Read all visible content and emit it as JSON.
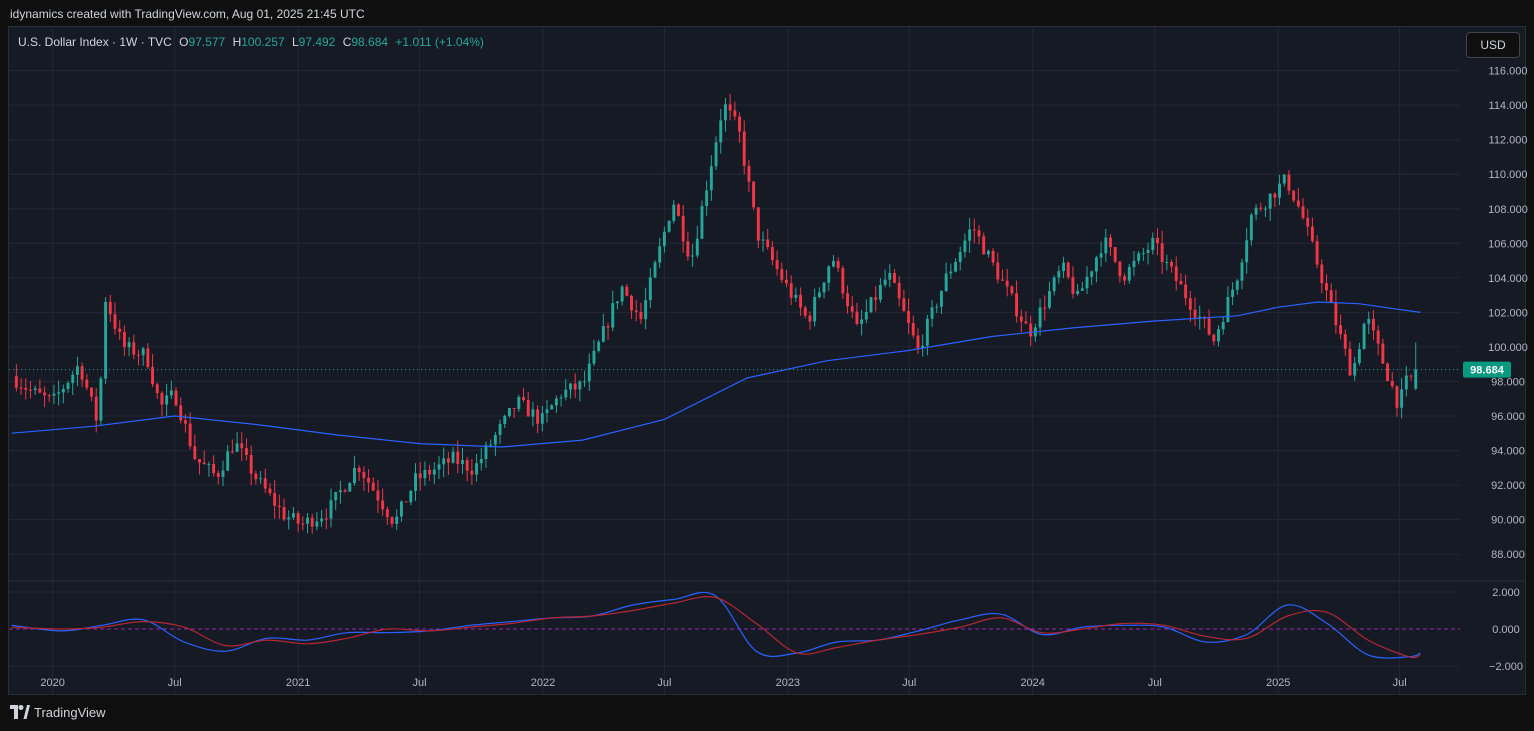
{
  "header": {
    "caption": "idynamics created with TradingView.com, Aug 01, 2025 21:45 UTC"
  },
  "legend": {
    "symbol": "U.S. Dollar Index · 1W · TVC",
    "open_label": "O",
    "open": "97.577",
    "high_label": "H",
    "high": "100.257",
    "low_label": "L",
    "low": "97.492",
    "close_label": "C",
    "close": "98.684",
    "change": "+1.011 (+1.04%)"
  },
  "currency_button": "USD",
  "footer": {
    "brand": "TradingView"
  },
  "colors": {
    "up": "#26a69a",
    "down": "#f23645",
    "ma": "#2962ff",
    "osc_fast": "#2962ff",
    "osc_slow": "#b22833",
    "last_price_bg": "#089981"
  },
  "chart_data": [
    {
      "type": "candlestick",
      "series_name": "U.S. Dollar Index",
      "ylim": [
        86.5,
        116.5
      ],
      "y_ticks": [
        "88.000",
        "90.000",
        "92.000",
        "94.000",
        "96.000",
        "98.000",
        "100.000",
        "102.000",
        "104.000",
        "106.000",
        "108.000",
        "110.000",
        "112.000",
        "114.000",
        "116.000"
      ],
      "last_price_label": "98.684",
      "x_tick_labels": [
        "2020",
        "Jul",
        "2021",
        "Jul",
        "2022",
        "Jul",
        "2023",
        "Jul",
        "2024",
        "Jul",
        "2025",
        "Jul"
      ],
      "x_ticks_dates": [
        "2020-01-01",
        "2020-07-01",
        "2021-01-01",
        "2021-07-01",
        "2022-01-01",
        "2022-07-01",
        "2023-01-01",
        "2023-07-01",
        "2024-01-01",
        "2024-07-01",
        "2025-01-01",
        "2025-07-01"
      ],
      "x_range": [
        "2019-10-28",
        "2025-09-29"
      ],
      "price_path": [
        [
          "2019-11-01",
          98.3
        ],
        [
          "2019-12-01",
          97.4
        ],
        [
          "2020-01-01",
          96.8
        ],
        [
          "2020-02-10",
          99.0
        ],
        [
          "2020-03-09",
          95.5
        ],
        [
          "2020-03-20",
          102.8
        ],
        [
          "2020-04-15",
          100.0
        ],
        [
          "2020-05-20",
          99.5
        ],
        [
          "2020-06-10",
          96.5
        ],
        [
          "2020-07-01",
          97.3
        ],
        [
          "2020-08-01",
          93.5
        ],
        [
          "2020-09-01",
          92.5
        ],
        [
          "2020-09-28",
          94.5
        ],
        [
          "2020-11-01",
          92.3
        ],
        [
          "2020-12-10",
          90.3
        ],
        [
          "2021-01-06",
          89.7
        ],
        [
          "2021-02-15",
          90.5
        ],
        [
          "2021-03-31",
          93.2
        ],
        [
          "2021-05-25",
          89.8
        ],
        [
          "2021-06-25",
          92.3
        ],
        [
          "2021-08-20",
          93.5
        ],
        [
          "2021-09-20",
          92.9
        ],
        [
          "2021-11-24",
          96.8
        ],
        [
          "2021-12-30",
          95.7
        ],
        [
          "2022-01-28",
          97.3
        ],
        [
          "2022-03-02",
          97.8
        ],
        [
          "2022-04-28",
          103.5
        ],
        [
          "2022-05-27",
          101.6
        ],
        [
          "2022-07-14",
          108.5
        ],
        [
          "2022-08-10",
          105.0
        ],
        [
          "2022-09-27",
          114.1
        ],
        [
          "2022-10-20",
          112.5
        ],
        [
          "2022-11-17",
          106.5
        ],
        [
          "2022-12-30",
          103.5
        ],
        [
          "2023-01-31",
          101.5
        ],
        [
          "2023-03-08",
          105.3
        ],
        [
          "2023-04-14",
          101.0
        ],
        [
          "2023-05-31",
          104.2
        ],
        [
          "2023-07-14",
          99.8
        ],
        [
          "2023-08-25",
          104.0
        ],
        [
          "2023-10-03",
          107.0
        ],
        [
          "2023-11-20",
          103.5
        ],
        [
          "2023-12-27",
          100.8
        ],
        [
          "2024-02-14",
          104.6
        ],
        [
          "2024-03-08",
          102.8
        ],
        [
          "2024-04-16",
          106.2
        ],
        [
          "2024-05-15",
          104.1
        ],
        [
          "2024-06-28",
          106.0
        ],
        [
          "2024-07-31",
          104.0
        ],
        [
          "2024-09-27",
          100.4
        ],
        [
          "2024-10-31",
          104.0
        ],
        [
          "2024-11-22",
          107.6
        ],
        [
          "2025-01-13",
          109.7
        ],
        [
          "2025-02-05",
          107.7
        ],
        [
          "2025-03-12",
          103.4
        ],
        [
          "2025-04-21",
          98.4
        ],
        [
          "2025-05-12",
          101.8
        ],
        [
          "2025-06-30",
          96.6
        ],
        [
          "2025-07-10",
          97.9
        ],
        [
          "2025-07-30",
          98.7
        ]
      ],
      "ohlc_last": {
        "open": 97.577,
        "high": 100.257,
        "low": 97.492,
        "close": 98.684
      }
    },
    {
      "type": "line",
      "series_name": "Moving average",
      "x": [
        "2019-11-01",
        "2020-03-01",
        "2020-07-01",
        "2020-11-01",
        "2021-03-01",
        "2021-07-01",
        "2021-11-01",
        "2022-03-01",
        "2022-07-01",
        "2022-11-01",
        "2023-03-01",
        "2023-07-01",
        "2023-11-01",
        "2024-03-01",
        "2024-07-01",
        "2024-11-01",
        "2025-01-01",
        "2025-03-01",
        "2025-05-01",
        "2025-08-01"
      ],
      "values": [
        95.0,
        95.4,
        96.0,
        95.5,
        94.9,
        94.4,
        94.2,
        94.6,
        95.8,
        98.2,
        99.2,
        99.8,
        100.6,
        101.1,
        101.5,
        101.8,
        102.3,
        102.6,
        102.5,
        102.0
      ]
    },
    {
      "type": "line",
      "series_name": "Oscillator",
      "ylim": [
        -2.0,
        2.0
      ],
      "y_ticks": [
        "2.000",
        "0.000",
        "−2.000"
      ],
      "zero_line": 0,
      "x": [
        "2019-11-01",
        "2020-01-15",
        "2020-03-15",
        "2020-05-15",
        "2020-07-15",
        "2020-09-15",
        "2020-11-15",
        "2021-01-15",
        "2021-03-15",
        "2021-05-15",
        "2021-07-15",
        "2021-09-15",
        "2021-11-15",
        "2022-01-15",
        "2022-03-15",
        "2022-05-15",
        "2022-07-15",
        "2022-09-15",
        "2022-11-15",
        "2023-01-15",
        "2023-03-15",
        "2023-05-15",
        "2023-07-15",
        "2023-09-15",
        "2023-11-15",
        "2024-01-15",
        "2024-03-15",
        "2024-05-15",
        "2024-07-15",
        "2024-09-15",
        "2024-11-15",
        "2025-01-15",
        "2025-03-15",
        "2025-05-15",
        "2025-07-15",
        "2025-08-01"
      ],
      "series": [
        {
          "role": "fast",
          "values": [
            0.2,
            -0.1,
            0.2,
            0.5,
            -0.7,
            -1.2,
            -0.5,
            -0.6,
            -0.2,
            -0.2,
            -0.1,
            0.2,
            0.4,
            0.6,
            0.7,
            1.3,
            1.6,
            1.8,
            -1.2,
            -1.3,
            -0.7,
            -0.6,
            -0.1,
            0.5,
            0.8,
            -0.3,
            0.1,
            0.2,
            0.1,
            -0.7,
            -0.3,
            1.3,
            0.3,
            -1.4,
            -1.5,
            -1.3
          ]
        },
        {
          "role": "slow",
          "values": [
            0.1,
            0.0,
            0.1,
            0.4,
            0.1,
            -0.9,
            -0.6,
            -0.8,
            -0.5,
            0.0,
            -0.1,
            0.1,
            0.3,
            0.6,
            0.7,
            1.0,
            1.4,
            1.7,
            0.3,
            -1.3,
            -1.0,
            -0.6,
            -0.3,
            0.1,
            0.6,
            -0.2,
            0.0,
            0.3,
            0.2,
            -0.4,
            -0.5,
            0.7,
            0.9,
            -0.6,
            -1.5,
            -1.4
          ]
        }
      ]
    }
  ]
}
